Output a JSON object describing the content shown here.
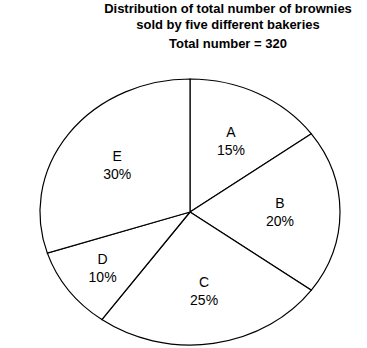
{
  "chart_data": {
    "type": "pie",
    "title": "Distribution of total number of brownies sold by five different bakeries",
    "subtitle": "Total number = 320",
    "categories": [
      "A",
      "B",
      "C",
      "D",
      "E"
    ],
    "values": [
      15,
      20,
      25,
      10,
      30
    ],
    "value_labels": [
      "15%",
      "20%",
      "25%",
      "10%",
      "30%"
    ],
    "data_labels": true,
    "color": "#ffffff"
  }
}
